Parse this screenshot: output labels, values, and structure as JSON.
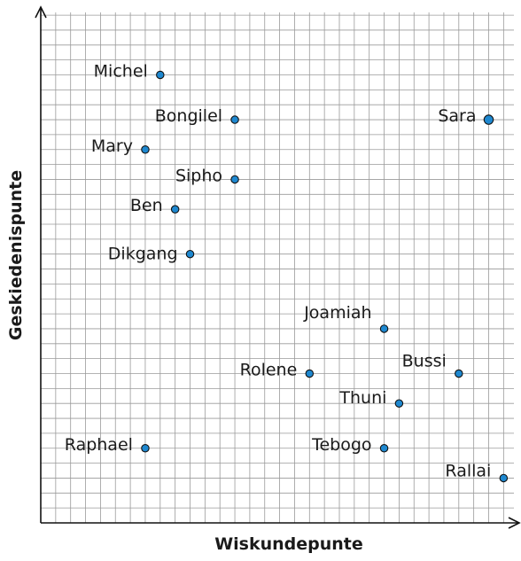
{
  "chart_data": {
    "type": "scatter",
    "title": "",
    "xlabel": "Wiskundepunte",
    "ylabel": "Geskiedenispunte",
    "grid": true,
    "xlim": [
      0,
      32
    ],
    "ylim": [
      0,
      34
    ],
    "point_color": "#1e88d0",
    "points": [
      {
        "name": "Michel",
        "x": 8,
        "y": 30
      },
      {
        "name": "Bongilel",
        "x": 13,
        "y": 27
      },
      {
        "name": "Sara",
        "x": 30,
        "y": 27
      },
      {
        "name": "Mary",
        "x": 7,
        "y": 25
      },
      {
        "name": "Sipho",
        "x": 13,
        "y": 23
      },
      {
        "name": "Ben",
        "x": 9,
        "y": 21
      },
      {
        "name": "Dikgang",
        "x": 10,
        "y": 18
      },
      {
        "name": "Joamiah",
        "x": 23,
        "y": 13
      },
      {
        "name": "Rolene",
        "x": 18,
        "y": 10
      },
      {
        "name": "Bussi",
        "x": 28,
        "y": 10
      },
      {
        "name": "Thuni",
        "x": 24,
        "y": 8
      },
      {
        "name": "Raphael",
        "x": 7,
        "y": 5
      },
      {
        "name": "Tebogo",
        "x": 23,
        "y": 5
      },
      {
        "name": "Rallai",
        "x": 31,
        "y": 3
      }
    ]
  }
}
